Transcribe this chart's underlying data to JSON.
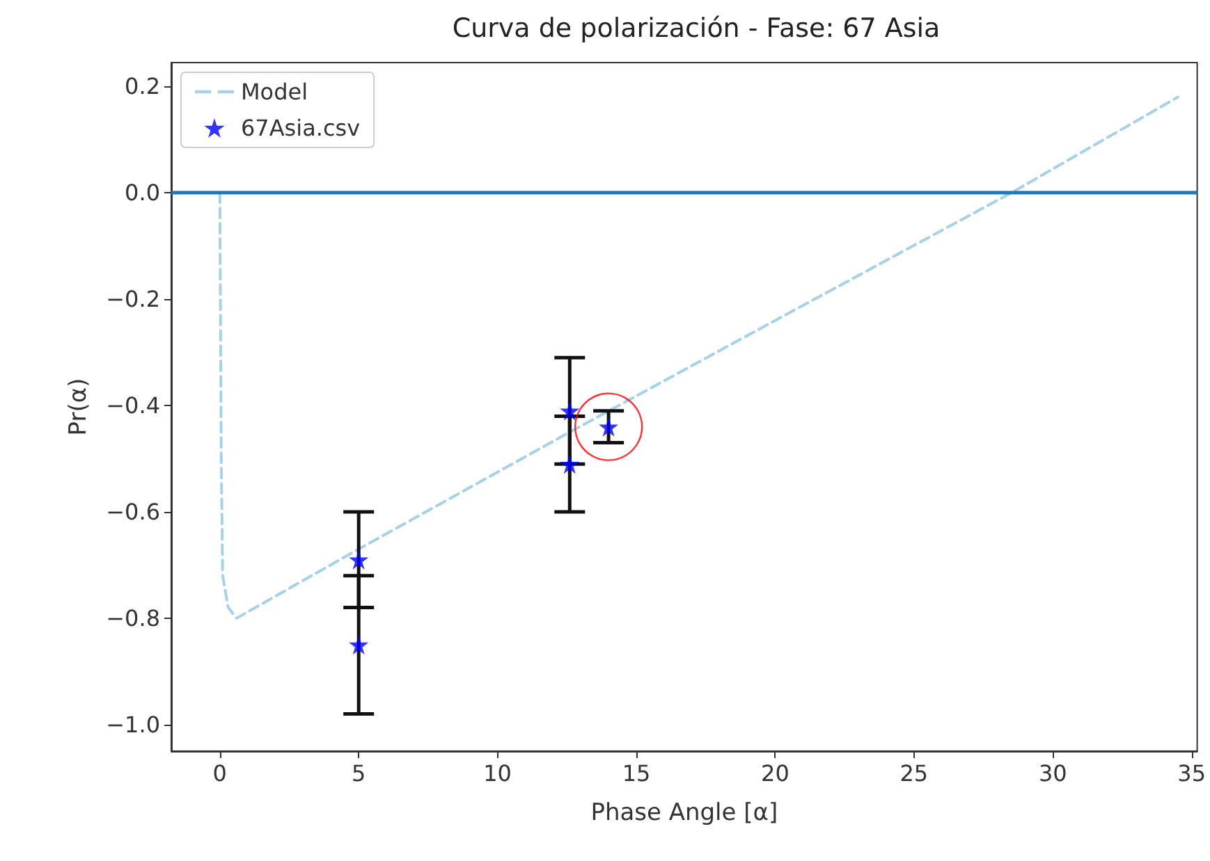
{
  "chart_data": {
    "type": "scatter",
    "title": "Curva de polarización - Fase: 67 Asia",
    "xlabel": "Phase Angle [α]",
    "ylabel": "Pr(α)",
    "xlim": [
      -1.75,
      35.2
    ],
    "ylim": [
      -1.05,
      0.245
    ],
    "xticks": [
      0,
      5,
      10,
      15,
      20,
      25,
      30,
      35
    ],
    "yticks": [
      {
        "value": -1,
        "label": "−1.0"
      },
      {
        "value": -0.8,
        "label": "−0.8"
      },
      {
        "value": -0.6,
        "label": "−0.6"
      },
      {
        "value": -0.4,
        "label": "−0.4"
      },
      {
        "value": -0.2,
        "label": "−0.2"
      },
      {
        "value": 0,
        "label": "0.0"
      },
      0.2
    ],
    "grid": false,
    "legend": "top left",
    "ref_lines": [
      {
        "axis": "y",
        "value": 0,
        "color": "#1f77b4"
      }
    ],
    "series": [
      {
        "name": "Model",
        "type": "line",
        "color": "#a6d2e8",
        "line_style": "dashed",
        "marker": "none",
        "x": [
          0,
          0.05,
          0.1,
          0.3,
          0.6,
          5,
          12.6,
          20,
          28.5,
          34.5
        ],
        "values": [
          0,
          -0.5,
          -0.72,
          -0.78,
          -0.8,
          -0.67,
          -0.45,
          -0.24,
          0,
          0.18
        ]
      },
      {
        "name": "67Asia.csv",
        "type": "scatter",
        "color": "#0000ff",
        "marker": "star",
        "x": [
          5,
          5,
          12.6,
          12.6,
          14
        ],
        "values": [
          -0.69,
          -0.85,
          -0.41,
          -0.51,
          -0.44
        ],
        "errors": [
          0.09,
          0.13,
          0.1,
          0.09,
          0.03
        ]
      },
      {
        "type": "scatter",
        "color": "#ff0000",
        "marker": "circle",
        "x": [
          14
        ],
        "values": [
          -0.44
        ]
      }
    ]
  }
}
